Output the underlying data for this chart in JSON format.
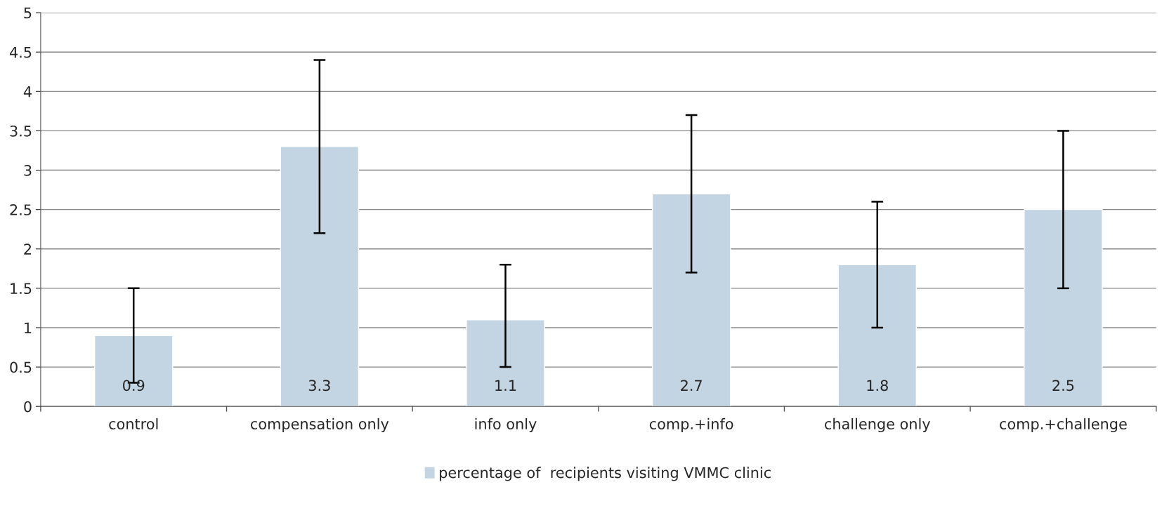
{
  "chart_data": {
    "type": "bar",
    "categories": [
      "control",
      "compensation only",
      "info only",
      "comp.+info",
      "challenge only",
      "comp.+challenge"
    ],
    "series": [
      {
        "name": "percentage of  recipients visiting VMMC clinic",
        "color": "#c3d5e3",
        "values": [
          0.9,
          3.3,
          1.1,
          2.7,
          1.8,
          2.5
        ],
        "errors": [
          [
            0.3,
            1.5
          ],
          [
            2.2,
            4.4
          ],
          [
            0.5,
            1.8
          ],
          [
            1.7,
            3.7
          ],
          [
            1.0,
            2.6
          ],
          [
            1.5,
            3.5
          ]
        ]
      }
    ],
    "ylim": [
      0,
      5
    ],
    "yticks": [
      0,
      0.5,
      1,
      1.5,
      2,
      2.5,
      3,
      3.5,
      4,
      4.5,
      5
    ],
    "grid": "y",
    "legend": "bottom",
    "data_labels": true
  }
}
